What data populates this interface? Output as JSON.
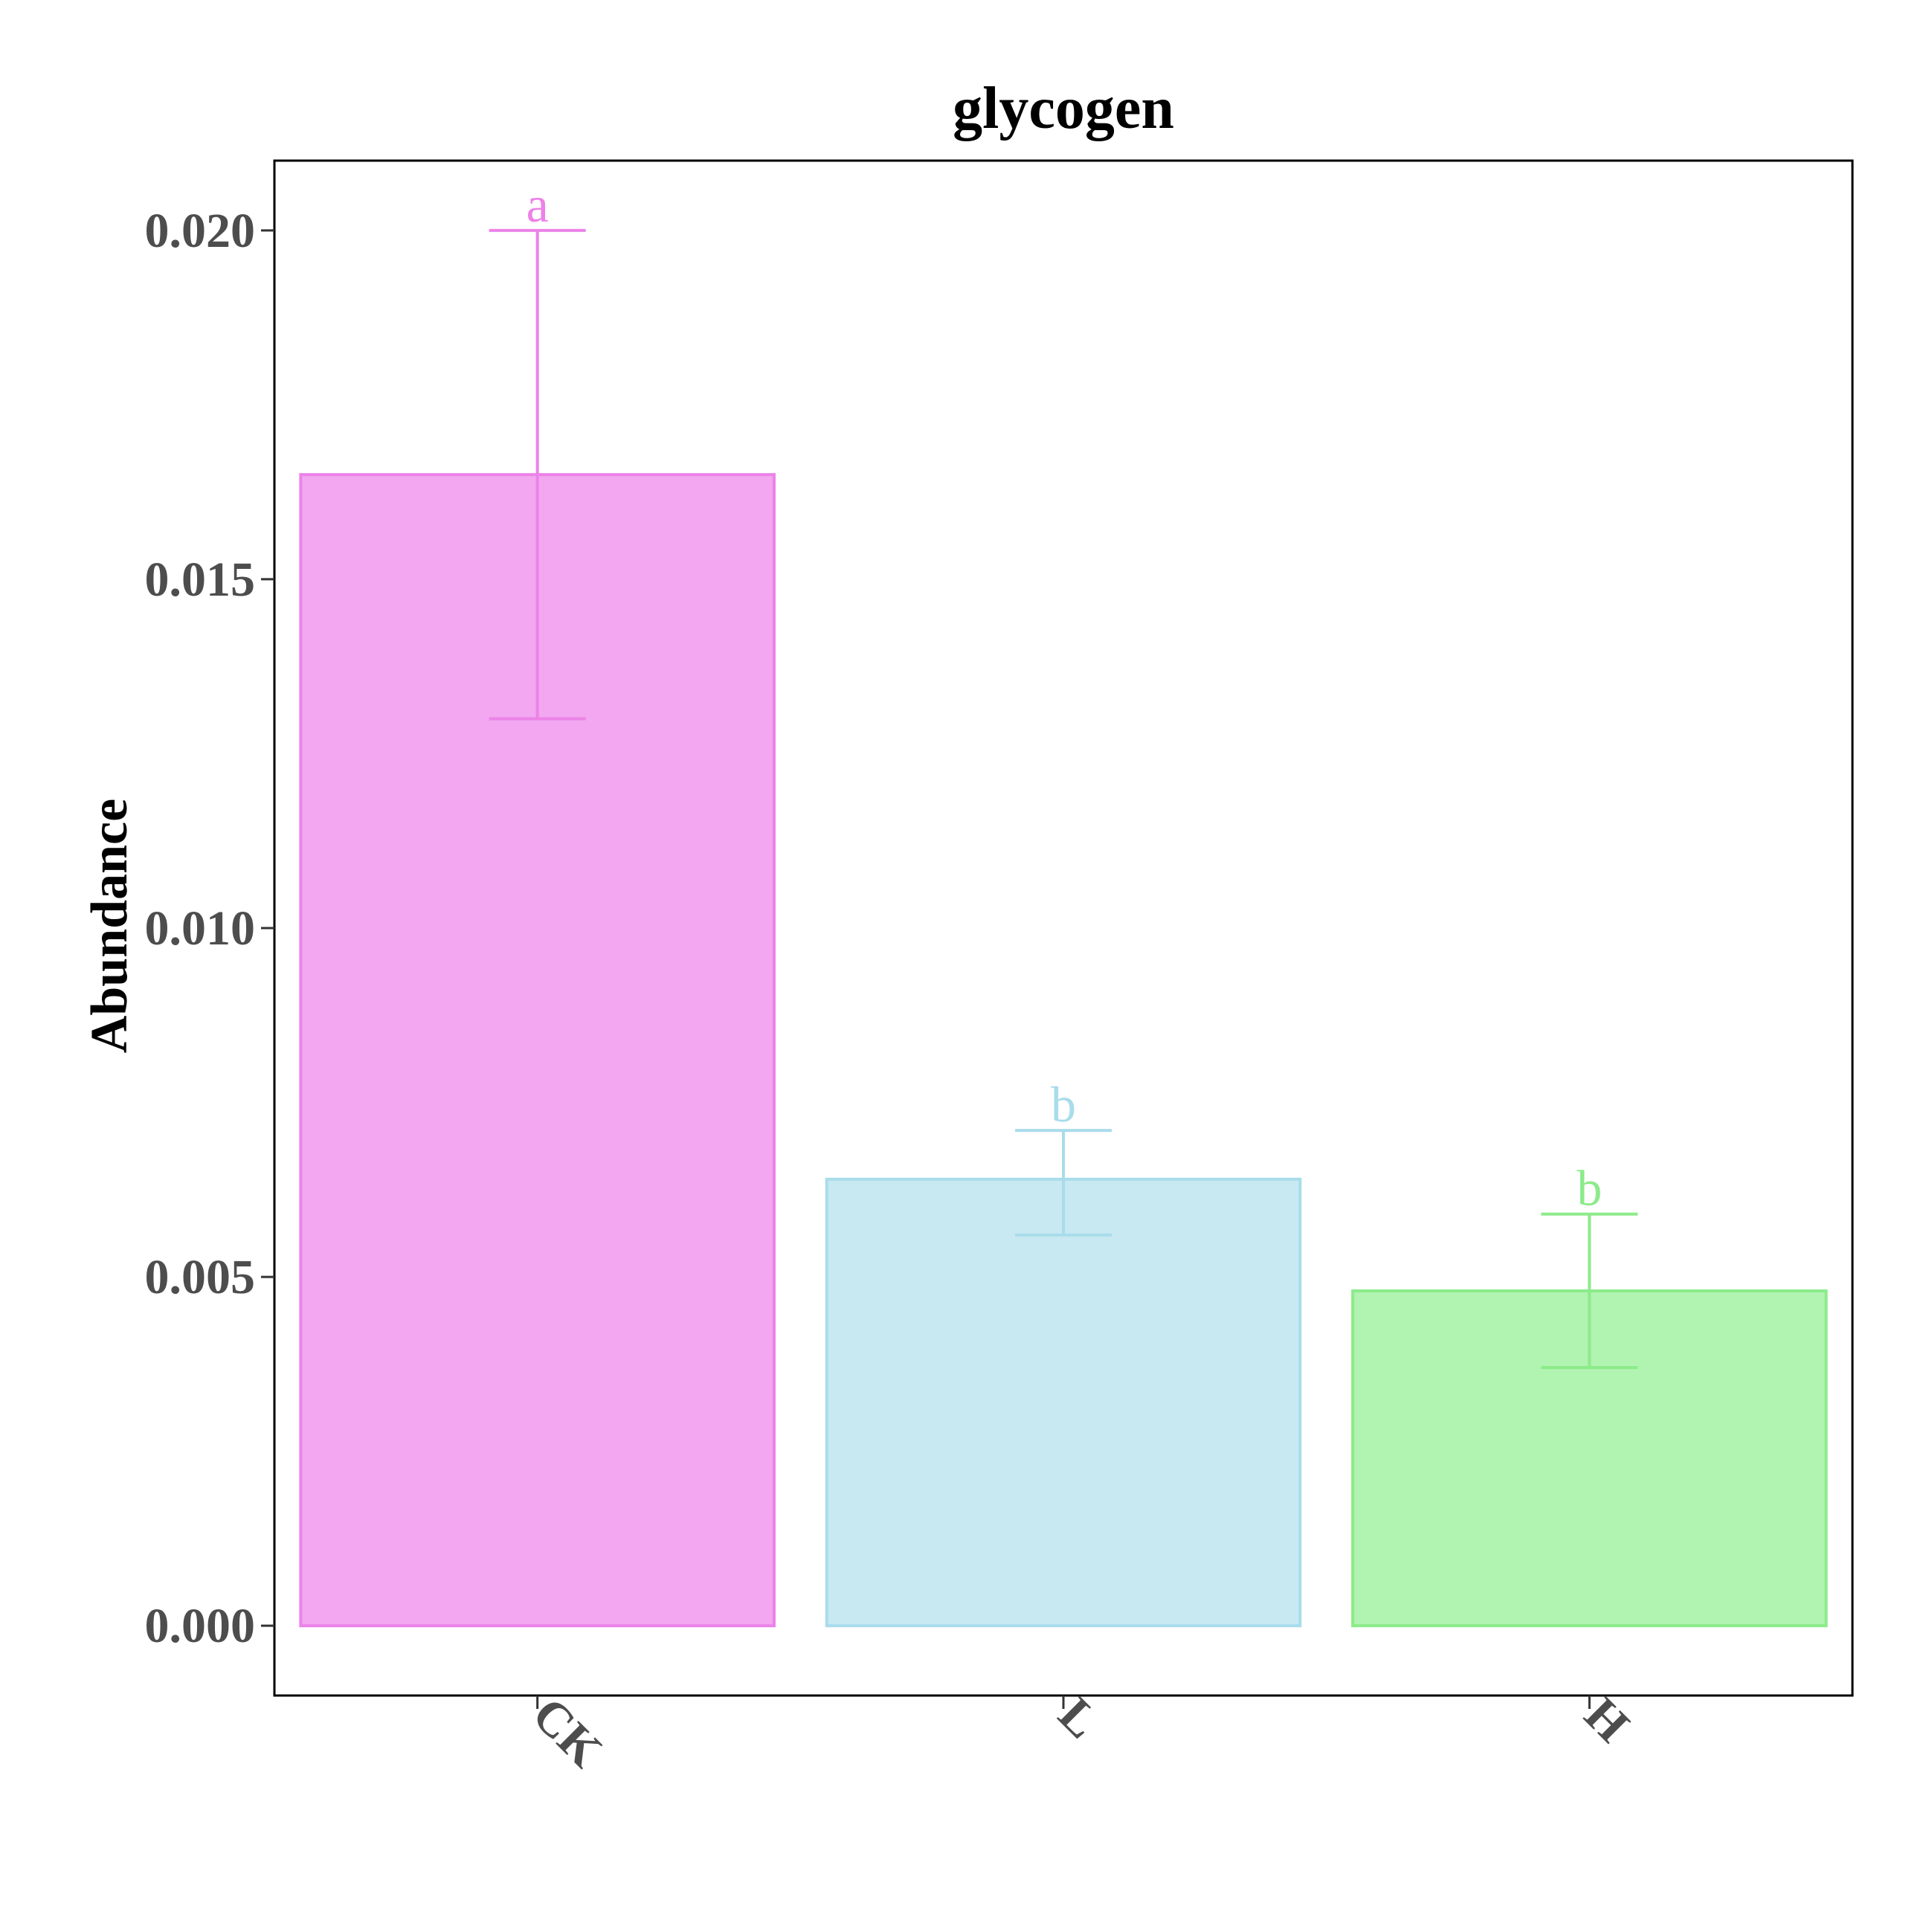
{
  "chart_data": {
    "type": "bar",
    "title": "glycogen",
    "xlabel": "",
    "ylabel": "Abundance",
    "categories": [
      "CK",
      "L",
      "H"
    ],
    "values": [
      0.0165,
      0.0064,
      0.0048
    ],
    "error_low": [
      0.013,
      0.0056,
      0.0037
    ],
    "error_high": [
      0.02,
      0.0071,
      0.0059
    ],
    "significance": [
      "a",
      "b",
      "b"
    ],
    "ylim": [
      -0.001,
      0.021
    ],
    "yticks": [
      0.0,
      0.005,
      0.01,
      0.015,
      0.02
    ],
    "ytick_labels": [
      "0.000",
      "0.005",
      "0.010",
      "0.015",
      "0.020"
    ],
    "grid": false,
    "legend": "none",
    "colors": {
      "fill": [
        "#f2a7f0",
        "#c8e9f2",
        "#b1f3b0"
      ],
      "stroke": [
        "#ec82e8",
        "#a9dceb",
        "#8ceb8a"
      ]
    }
  }
}
